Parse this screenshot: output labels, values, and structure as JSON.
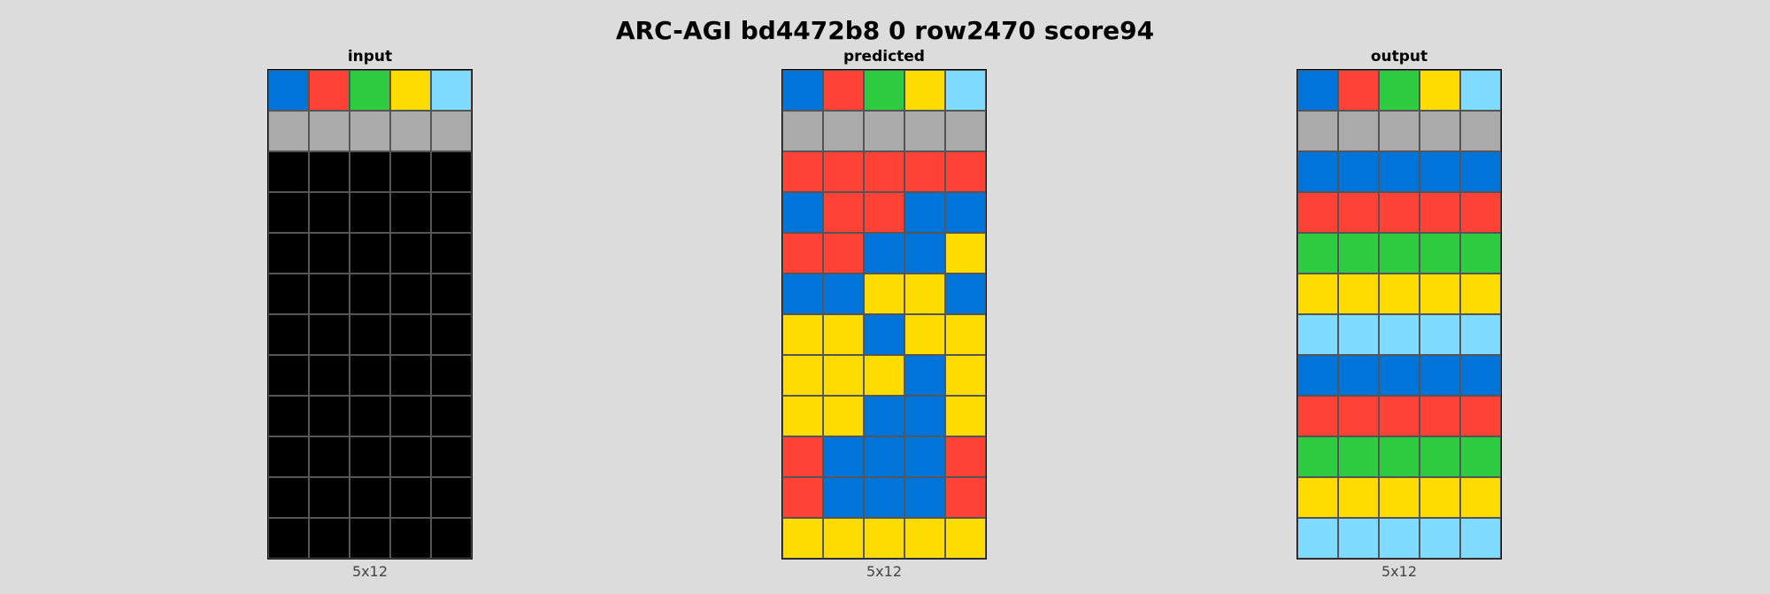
{
  "title": "ARC-AGI bd4472b8 0 row2470 score94",
  "palette": {
    "0": "#000000",
    "1": "#0074d9",
    "2": "#ff4136",
    "3": "#2ecc40",
    "4": "#ffdc00",
    "5": "#aaaaaa",
    "8": "#7fdbff"
  },
  "panels": [
    {
      "label": "input",
      "dims": "5x12",
      "grid": [
        [
          1,
          2,
          3,
          4,
          8
        ],
        [
          5,
          5,
          5,
          5,
          5
        ],
        [
          0,
          0,
          0,
          0,
          0
        ],
        [
          0,
          0,
          0,
          0,
          0
        ],
        [
          0,
          0,
          0,
          0,
          0
        ],
        [
          0,
          0,
          0,
          0,
          0
        ],
        [
          0,
          0,
          0,
          0,
          0
        ],
        [
          0,
          0,
          0,
          0,
          0
        ],
        [
          0,
          0,
          0,
          0,
          0
        ],
        [
          0,
          0,
          0,
          0,
          0
        ],
        [
          0,
          0,
          0,
          0,
          0
        ],
        [
          0,
          0,
          0,
          0,
          0
        ]
      ]
    },
    {
      "label": "predicted",
      "dims": "5x12",
      "grid": [
        [
          1,
          2,
          3,
          4,
          8
        ],
        [
          5,
          5,
          5,
          5,
          5
        ],
        [
          2,
          2,
          2,
          2,
          2
        ],
        [
          1,
          2,
          2,
          1,
          1
        ],
        [
          2,
          2,
          1,
          1,
          4
        ],
        [
          1,
          1,
          4,
          4,
          1
        ],
        [
          4,
          4,
          1,
          4,
          4
        ],
        [
          4,
          4,
          4,
          1,
          4
        ],
        [
          4,
          4,
          1,
          1,
          4
        ],
        [
          2,
          1,
          1,
          1,
          2
        ],
        [
          2,
          1,
          1,
          1,
          2
        ],
        [
          4,
          4,
          4,
          4,
          4
        ]
      ]
    },
    {
      "label": "output",
      "dims": "5x12",
      "grid": [
        [
          1,
          2,
          3,
          4,
          8
        ],
        [
          5,
          5,
          5,
          5,
          5
        ],
        [
          1,
          1,
          1,
          1,
          1
        ],
        [
          2,
          2,
          2,
          2,
          2
        ],
        [
          3,
          3,
          3,
          3,
          3
        ],
        [
          4,
          4,
          4,
          4,
          4
        ],
        [
          8,
          8,
          8,
          8,
          8
        ],
        [
          1,
          1,
          1,
          1,
          1
        ],
        [
          2,
          2,
          2,
          2,
          2
        ],
        [
          3,
          3,
          3,
          3,
          3
        ],
        [
          4,
          4,
          4,
          4,
          4
        ],
        [
          8,
          8,
          8,
          8,
          8
        ]
      ]
    }
  ]
}
